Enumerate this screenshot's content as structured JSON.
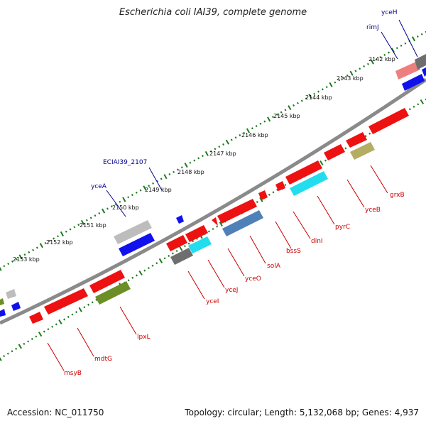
{
  "title": "Escherichia coli IAI39, complete genome",
  "footer": {
    "accession": "Accession: NC_011750",
    "summary": "Topology: circular; Length: 5,132,068 bp; Genes: 4,937"
  },
  "colors": {
    "backbone": "#8a8a8a",
    "tick": "#1e7a1e",
    "forward_label": "#00008b",
    "reverse_label": "#cc0000",
    "red": "#ee1111",
    "blue": "#1111ee",
    "gray": "#bdbdbd",
    "darkgray": "#6e6e6e",
    "steel": "#4f80b8",
    "cyan": "#22ddee",
    "olive": "#6b8f26",
    "khaki": "#b4ad62",
    "pink": "#ee7f7f"
  },
  "tick_labels": [
    "2142 kbp",
    "2143 kbp",
    "2144 kbp",
    "2145 kbp",
    "2146 kbp",
    "2147 kbp",
    "2148 kbp",
    "2149 kbp",
    "2150 kbp",
    "2151 kbp",
    "2152 kbp",
    "2153 kbp"
  ],
  "forward_genes": [
    "yceH",
    "rimJ",
    "ECIAI39_2107",
    "yceA"
  ],
  "reverse_genes": [
    "grxB",
    "yceB",
    "pyrC",
    "dinI",
    "bssS",
    "solA",
    "yceO",
    "yceJ",
    "yceI",
    "lpxL",
    "mdtG",
    "msyB"
  ]
}
